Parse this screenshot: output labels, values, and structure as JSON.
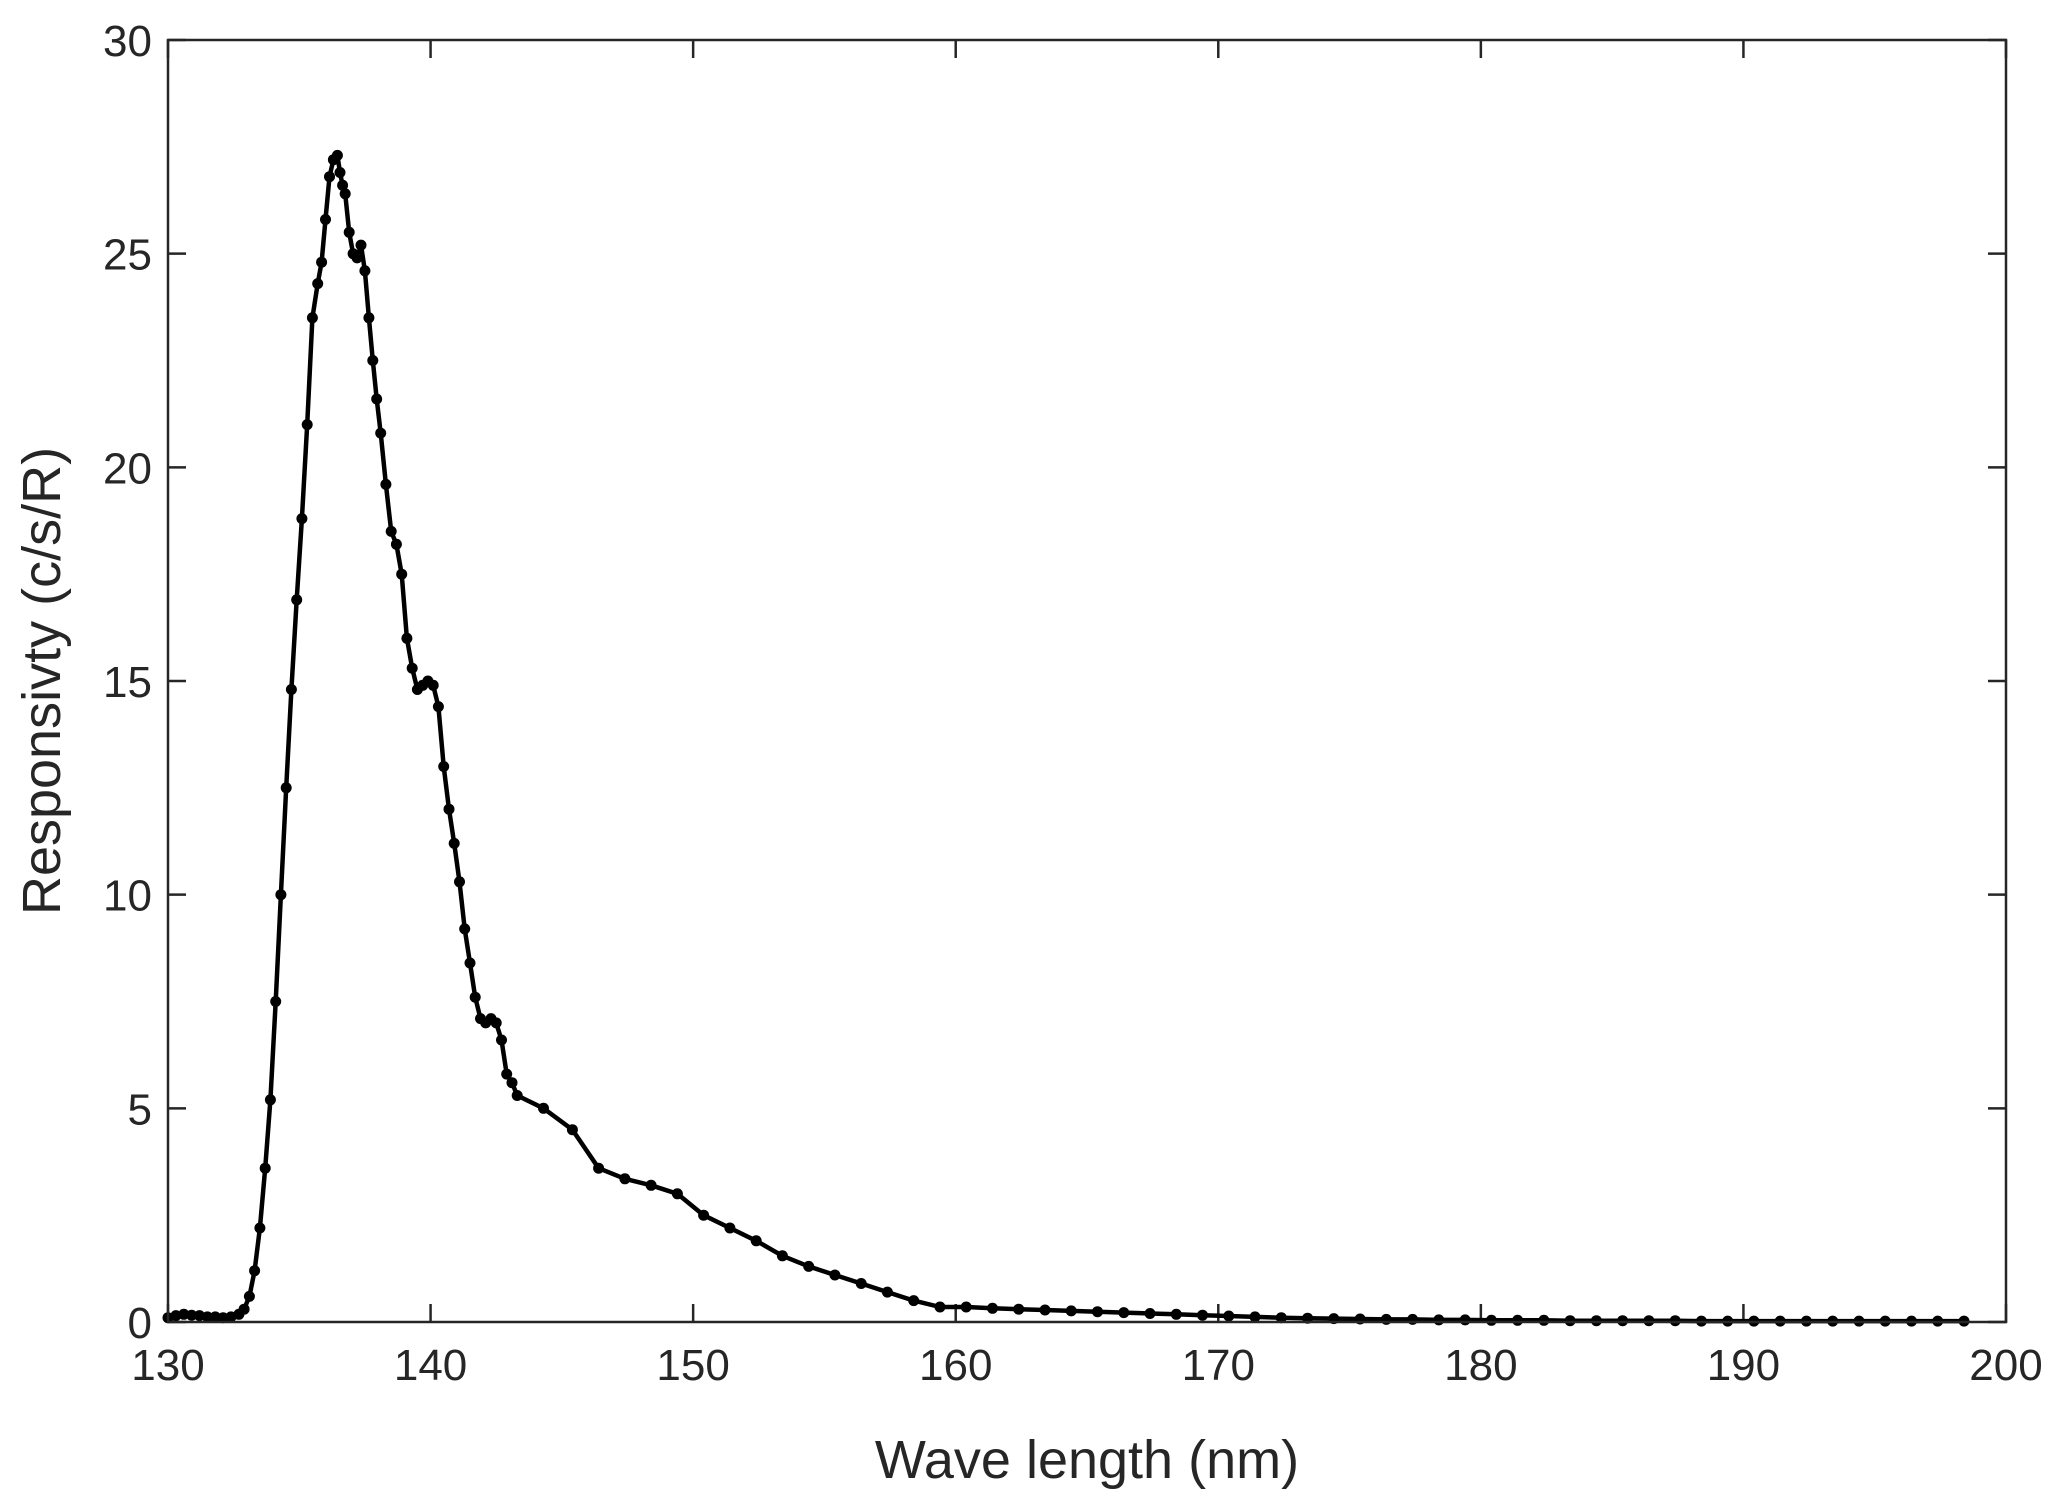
{
  "chart_data": {
    "type": "line",
    "title": "",
    "xlabel": "Wave length (nm)",
    "ylabel": "Responsivty (c/s/R)",
    "xlim": [
      130,
      200
    ],
    "ylim": [
      0,
      30
    ],
    "xticks": [
      130,
      140,
      150,
      160,
      170,
      180,
      190,
      200
    ],
    "yticks": [
      0,
      5,
      10,
      15,
      20,
      25,
      30
    ],
    "xtick_labels": [
      "130",
      "140",
      "150",
      "160",
      "170",
      "180",
      "190",
      "200"
    ],
    "ytick_labels": [
      "0",
      "5",
      "10",
      "15",
      "20",
      "25",
      "30"
    ],
    "grid": false,
    "legend": "none",
    "line_color": "#000000",
    "marker": "circle",
    "series": [
      {
        "x": [
          130.0,
          130.3,
          130.6,
          130.9,
          131.2,
          131.5,
          131.8,
          132.1,
          132.4,
          132.7,
          132.9,
          133.1,
          133.3,
          133.5,
          133.7,
          133.9,
          134.1,
          134.3,
          134.5,
          134.7,
          134.9,
          135.1,
          135.3,
          135.5,
          135.7,
          135.85,
          136.0,
          136.15,
          136.3,
          136.45,
          136.55,
          136.65,
          136.75,
          136.9,
          137.05,
          137.2,
          137.35,
          137.5,
          137.65,
          137.8,
          137.95,
          138.1,
          138.3,
          138.5,
          138.7,
          138.9,
          139.1,
          139.3,
          139.5,
          139.7,
          139.9,
          140.1,
          140.3,
          140.5,
          140.7,
          140.9,
          141.1,
          141.3,
          141.5,
          141.7,
          141.9,
          142.1,
          142.3,
          142.5,
          142.7,
          142.9,
          143.1,
          143.3,
          144.3,
          145.4,
          146.4,
          147.4,
          148.4,
          149.4,
          150.4,
          151.4,
          152.4,
          153.4,
          154.4,
          155.4,
          156.4,
          157.4,
          158.4,
          159.4,
          160.4,
          161.4,
          162.4,
          163.4,
          164.4,
          165.4,
          166.4,
          167.4,
          168.4,
          169.4,
          170.4,
          171.4,
          172.4,
          173.4,
          174.4,
          175.4,
          176.4,
          177.4,
          178.4,
          179.4,
          180.4,
          181.4,
          182.4,
          183.4,
          184.4,
          185.4,
          186.4,
          187.4,
          188.4,
          189.4,
          190.4,
          191.4,
          192.4,
          193.4,
          194.4,
          195.4,
          196.4,
          197.4,
          198.4
        ],
        "y": [
          0.1,
          0.15,
          0.18,
          0.16,
          0.15,
          0.12,
          0.12,
          0.1,
          0.12,
          0.18,
          0.3,
          0.6,
          1.2,
          2.2,
          3.6,
          5.2,
          7.5,
          10.0,
          12.5,
          14.8,
          16.9,
          18.8,
          21.0,
          23.5,
          24.3,
          24.8,
          25.8,
          26.8,
          27.2,
          27.3,
          26.9,
          26.6,
          26.4,
          25.5,
          25.0,
          24.9,
          25.2,
          24.6,
          23.5,
          22.5,
          21.6,
          20.8,
          19.6,
          18.5,
          18.2,
          17.5,
          16.0,
          15.3,
          14.8,
          14.9,
          15.0,
          14.9,
          14.4,
          13.0,
          12.0,
          11.2,
          10.3,
          9.2,
          8.4,
          7.6,
          7.1,
          7.0,
          7.1,
          7.0,
          6.6,
          5.8,
          5.6,
          5.3,
          5.0,
          4.5,
          3.6,
          3.35,
          3.2,
          3.0,
          2.5,
          2.2,
          1.9,
          1.55,
          1.3,
          1.1,
          0.9,
          0.7,
          0.5,
          0.35,
          0.35,
          0.32,
          0.3,
          0.28,
          0.26,
          0.24,
          0.22,
          0.2,
          0.18,
          0.16,
          0.14,
          0.12,
          0.1,
          0.09,
          0.08,
          0.07,
          0.06,
          0.06,
          0.05,
          0.05,
          0.04,
          0.04,
          0.04,
          0.03,
          0.03,
          0.03,
          0.03,
          0.03,
          0.02,
          0.02,
          0.02,
          0.02,
          0.02,
          0.02,
          0.02,
          0.02,
          0.02,
          0.02,
          0.02
        ]
      }
    ]
  }
}
